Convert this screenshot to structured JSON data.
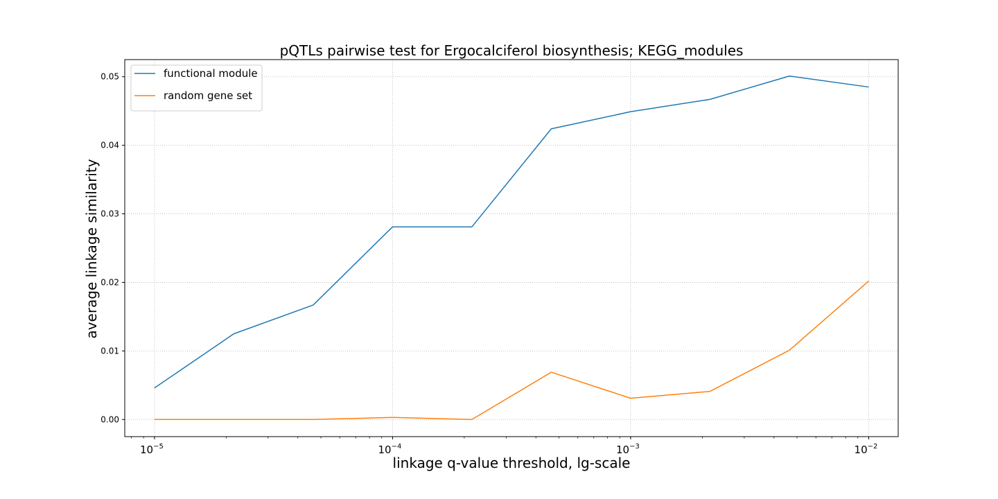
{
  "chart_data": {
    "type": "line",
    "title": "pQTLs pairwise test for Ergocalciferol biosynthesis; KEGG_modules",
    "xlabel": "linkage q-value threshold, lg-scale",
    "ylabel": "average linkage similarity",
    "xscale": "log",
    "grid": true,
    "legend_position": "top-left",
    "xlim": [
      7.5e-06,
      0.0133
    ],
    "ylim": [
      -0.0025,
      0.0525
    ],
    "x": [
      1e-05,
      2.154e-05,
      4.642e-05,
      0.0001,
      0.0002154,
      0.0004642,
      0.001,
      0.002154,
      0.004642,
      0.01
    ],
    "xtick_values": [
      1e-05,
      0.0001,
      0.001,
      0.01
    ],
    "xticks": [
      {
        "base": "10",
        "exp": "−5"
      },
      {
        "base": "10",
        "exp": "−4"
      },
      {
        "base": "10",
        "exp": "−3"
      },
      {
        "base": "10",
        "exp": "−2"
      }
    ],
    "yticks": [
      0.0,
      0.01,
      0.02,
      0.03,
      0.04,
      0.05
    ],
    "ytick_labels": [
      "0.00",
      "0.01",
      "0.02",
      "0.03",
      "0.04",
      "0.05"
    ],
    "series": [
      {
        "name": "functional module",
        "color": "#1f77b4",
        "values": [
          0.0046,
          0.0125,
          0.0167,
          0.0281,
          0.0281,
          0.0424,
          0.0449,
          0.0467,
          0.0501,
          0.0485
        ]
      },
      {
        "name": "random gene set",
        "color": "#ff7f0e",
        "values": [
          0.0,
          0.0,
          0.0,
          0.0003,
          0.0,
          0.0069,
          0.0031,
          0.0041,
          0.0101,
          0.0202
        ]
      }
    ]
  }
}
